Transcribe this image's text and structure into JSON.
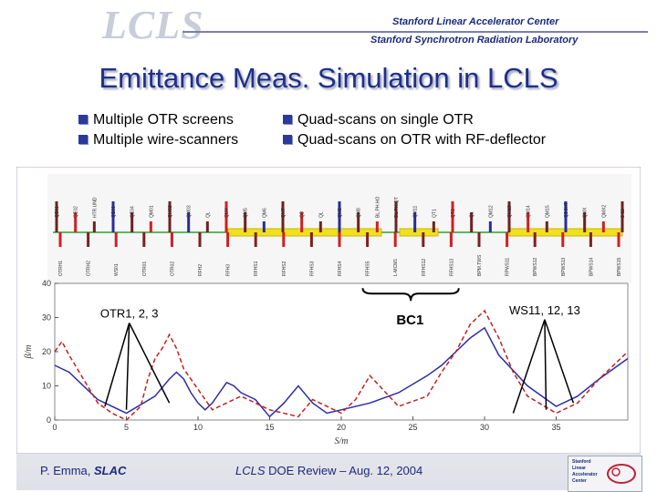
{
  "header": {
    "logo": "LCLS",
    "lab_line1": "Stanford Linear Accelerator Center",
    "lab_line2": "Stanford Synchrotron Radiation Laboratory"
  },
  "slide": {
    "title": "Emittance Meas. Simulation in LCLS",
    "bullets_left": [
      "Multiple OTR screens",
      "Multiple wire-scanners"
    ],
    "bullets_right": [
      "Quad-scans on single OTR",
      "Quad-scans on OTR with RF-deflector"
    ]
  },
  "beamline": {
    "top_labels": [
      "QE01",
      "QE02",
      "HTR.UND",
      "QE03",
      "QE04",
      "QM01",
      "QM02",
      "QM03",
      "QL",
      "QM4",
      "QM5",
      "QM6",
      "QM7",
      "QB",
      "QL",
      "QM2",
      "QM8",
      "BL.PH.HO",
      "BL.PH.QT",
      "QM11",
      "QT1",
      "QT2",
      "QL",
      "QM12",
      "QM13",
      "QM14",
      "QM15",
      "QDSXT",
      "QMX",
      "QMX2",
      "2-11"
    ],
    "bottom_labels": [
      "OTRH1",
      "OTRH2",
      "WS01",
      "OTR01",
      "OTR02",
      "RFH2",
      "RFH3",
      "RFHS1",
      "RFHS2",
      "RFHS3",
      "RFHS4",
      "RFHS5",
      "L-MCM1",
      "RFHS12",
      "RFHS13",
      "BPM.TWS",
      "RPWS11",
      "BPWS12",
      "BPWS13",
      "BPWS14",
      "BPWS15"
    ]
  },
  "chart_data": {
    "type": "line",
    "xlabel": "S/m",
    "ylabel": "β/m",
    "xlim": [
      0,
      40
    ],
    "ylim": [
      0,
      40
    ],
    "xticks": [
      0,
      5,
      10,
      15,
      20,
      25,
      30,
      35
    ],
    "yticks": [
      0,
      10,
      20,
      30,
      40
    ],
    "series": [
      {
        "style": "solid-blue",
        "x": [
          0,
          1,
          3,
          5,
          7,
          8,
          8.5,
          9,
          9.5,
          10,
          10.5,
          11,
          11.5,
          12,
          12.5,
          13,
          14,
          15,
          16,
          17,
          18,
          19,
          20,
          22,
          24,
          26,
          27,
          28,
          29,
          30,
          31,
          33,
          35,
          36.5,
          38,
          40
        ],
        "y": [
          16,
          14,
          6,
          2,
          7,
          12,
          14,
          12,
          8,
          5,
          3,
          5,
          8,
          11,
          10,
          8,
          6,
          1,
          5,
          10,
          5,
          2,
          3,
          5,
          8,
          13,
          16,
          20,
          24,
          27,
          19,
          10,
          4,
          7,
          12,
          18
        ]
      },
      {
        "style": "dashed-red",
        "x": [
          0,
          0.5,
          1,
          2,
          3,
          4,
          5,
          6,
          6.5,
          7,
          7.5,
          8,
          8.5,
          9,
          10,
          11,
          12,
          13,
          15,
          17,
          18,
          20,
          21,
          22,
          24,
          26,
          27,
          28,
          29,
          30,
          31,
          32,
          33,
          35,
          36.5,
          38,
          40
        ],
        "y": [
          20,
          23,
          19,
          12,
          5,
          2,
          0,
          4,
          12,
          18,
          21,
          25,
          21,
          15,
          9,
          3,
          5,
          7,
          3,
          1,
          6,
          2,
          6,
          13,
          4,
          7,
          14,
          20,
          28,
          32,
          24,
          14,
          7,
          2,
          5,
          12,
          20
        ]
      }
    ],
    "annotations": [
      {
        "text": "OTR1, 2, 3",
        "x": 5.2,
        "y": 30
      },
      {
        "text": "BC1",
        "x": 24.8,
        "y": 28
      },
      {
        "text": "WS11, 12, 13",
        "x": 34.2,
        "y": 31
      }
    ]
  },
  "footer": {
    "author": "P. Emma, ",
    "author_org": "SLAC",
    "review_prefix": "LCLS",
    "review_text": " DOE Review – Aug. 12, 2004"
  },
  "footer_logo": {
    "lines": [
      "Stanford",
      "Linear",
      "Accelerator",
      "Center"
    ]
  },
  "colors": {
    "title": "#1e2f8a",
    "blue_curve": "#2c2ca8",
    "red_curve": "#c42020"
  }
}
